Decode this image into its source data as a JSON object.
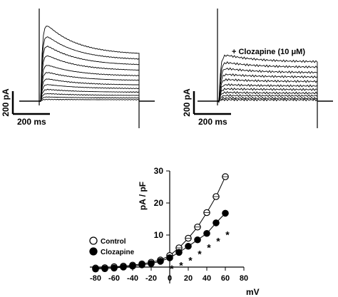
{
  "panels": [
    {
      "id": "control-traces",
      "scale_bar": {
        "y_label": "200 pA",
        "x_label": "200 ms"
      }
    },
    {
      "id": "clozapine-traces",
      "annotation": "+ Clozapine (10 μM)",
      "scale_bar": {
        "y_label": "200 pA",
        "x_label": "200 ms"
      }
    }
  ],
  "chart_data": [
    {
      "type": "line",
      "panel": "control-traces",
      "series_description": "current traces (family)",
      "note": "traces drawn as current families; peak amplitudes in pA",
      "peak_values_pA": [
        470,
        400,
        340,
        280,
        220,
        175,
        135,
        100,
        70,
        45,
        25,
        10
      ],
      "steady_values_pA": [
        260,
        230,
        200,
        170,
        140,
        115,
        90,
        70,
        50,
        32,
        18,
        8
      ]
    },
    {
      "type": "line",
      "panel": "clozapine-traces",
      "peak_values_pA": [
        270,
        225,
        190,
        155,
        125,
        95,
        70,
        50,
        32,
        18,
        8
      ],
      "steady_values_pA": [
        220,
        190,
        160,
        135,
        110,
        85,
        65,
        45,
        30,
        16,
        7
      ]
    },
    {
      "type": "scatter",
      "panel": "iv-curve",
      "xlabel": "mV",
      "ylabel": "pA / pF",
      "xlim": [
        -80,
        80
      ],
      "ylim": [
        -2,
        30
      ],
      "x_ticks": [
        -80,
        -60,
        -40,
        -20,
        0,
        20,
        40,
        60,
        80
      ],
      "x_tick_labels": [
        "-80",
        "-60",
        "-40",
        "-20",
        "0",
        "20",
        "40",
        "60",
        "80"
      ],
      "y_ticks": [
        10,
        20,
        30
      ],
      "y_tick_labels": [
        "10",
        "20",
        "30"
      ],
      "legend_position": "left",
      "series": [
        {
          "name": "Control",
          "marker": "open-circle",
          "x": [
            -80,
            -70,
            -60,
            -50,
            -40,
            -30,
            -20,
            -10,
            0,
            10,
            20,
            30,
            40,
            50,
            60
          ],
          "y": [
            -0.3,
            -0.2,
            0.1,
            0.3,
            0.6,
            1.0,
            1.5,
            2.2,
            3.6,
            6.0,
            9.0,
            12.5,
            17.0,
            22.0,
            28.2
          ]
        },
        {
          "name": "Clozapine",
          "marker": "filled-circle",
          "x": [
            -80,
            -70,
            -60,
            -50,
            -40,
            -30,
            -20,
            -10,
            0,
            10,
            20,
            30,
            40,
            50,
            60
          ],
          "y": [
            -0.6,
            -0.5,
            -0.3,
            0.0,
            0.3,
            0.7,
            1.1,
            1.8,
            2.9,
            4.6,
            6.5,
            8.5,
            10.5,
            13.8,
            16.8
          ]
        }
      ],
      "significance_marker": "*",
      "significance_x": [
        0,
        10,
        20,
        30,
        40,
        50,
        60
      ],
      "significance_y": [
        -1.5,
        -0.5,
        1.0,
        3.0,
        5.0,
        7.0,
        9.0
      ]
    }
  ]
}
